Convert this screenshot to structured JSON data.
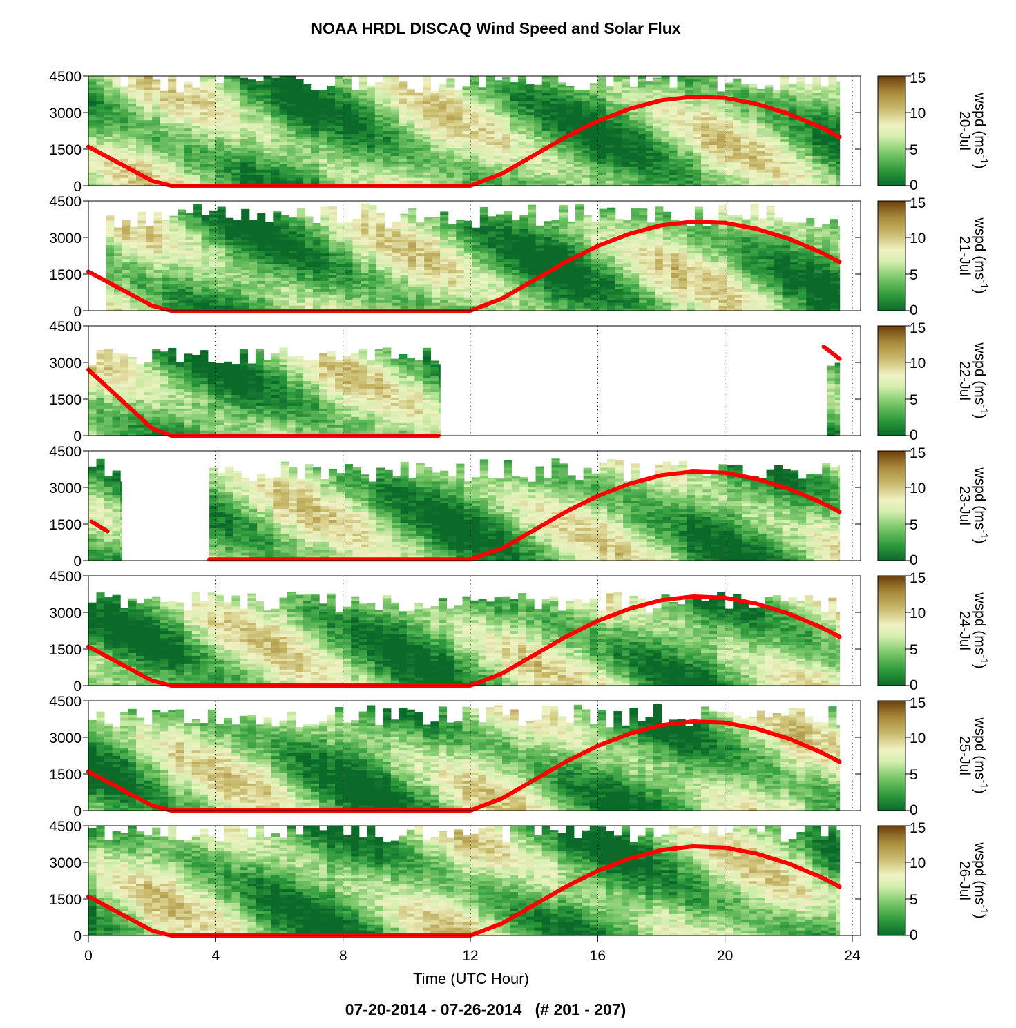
{
  "chart_data": {
    "type": "heatmap",
    "title": "NOAA HRDL DISCAQ Wind Speed and Solar Flux",
    "subtitle": "07-20-2014 - 07-26-2014   (# 201 - 207)",
    "xlabel": "Time (UTC Hour)",
    "xlim": [
      0,
      24
    ],
    "xticks": [
      "0",
      "4",
      "8",
      "12",
      "16",
      "20",
      "24"
    ],
    "ylim": [
      0,
      4500
    ],
    "yticks": [
      "0",
      "1500",
      "3000",
      "4500"
    ],
    "colorbar": {
      "label": "wspd (ms",
      "label_sup": "-1",
      "label_close": ")",
      "ticks": [
        "0",
        "5",
        "10",
        "15"
      ],
      "range": [
        0,
        15
      ],
      "colors": [
        "#0b6a2a",
        "#2e9a3c",
        "#7cc86a",
        "#d6efb0",
        "#f0f2c4",
        "#c9bb6e",
        "#a78a3a",
        "#6b3f0c"
      ]
    },
    "panels": [
      {
        "day": "20-Jul",
        "data_ranges": [
          [
            0,
            23.6
          ]
        ],
        "top": 4500,
        "solar": [
          [
            0,
            1600
          ],
          [
            2,
            200
          ],
          [
            2.6,
            0
          ],
          [
            12,
            0
          ],
          [
            13,
            500
          ],
          [
            14,
            1250
          ],
          [
            15,
            2000
          ],
          [
            16,
            2650
          ],
          [
            17,
            3150
          ],
          [
            18,
            3500
          ],
          [
            19,
            3650
          ],
          [
            20,
            3600
          ],
          [
            21,
            3350
          ],
          [
            22,
            2950
          ],
          [
            23,
            2400
          ],
          [
            23.6,
            2000
          ]
        ]
      },
      {
        "day": "21-Jul",
        "data_ranges": [
          [
            0.55,
            23.6
          ]
        ],
        "top": 4000,
        "solar": [
          [
            0,
            1600
          ],
          [
            2,
            200
          ],
          [
            2.6,
            0
          ],
          [
            12,
            0
          ],
          [
            13,
            500
          ],
          [
            14,
            1250
          ],
          [
            15,
            2000
          ],
          [
            16,
            2650
          ],
          [
            17,
            3150
          ],
          [
            18,
            3500
          ],
          [
            19,
            3650
          ],
          [
            20,
            3600
          ],
          [
            21,
            3350
          ],
          [
            22,
            2950
          ],
          [
            23,
            2400
          ],
          [
            23.6,
            2000
          ]
        ]
      },
      {
        "day": "22-Jul",
        "data_ranges": [
          [
            0,
            11.05
          ],
          [
            23.2,
            23.6
          ]
        ],
        "top": 3300,
        "solar": [
          [
            0,
            2700
          ],
          [
            2,
            300
          ],
          [
            2.6,
            0
          ],
          [
            11,
            0
          ]
        ],
        "solar2": [
          [
            23.1,
            3650
          ],
          [
            23.6,
            3150
          ]
        ]
      },
      {
        "day": "23-Jul",
        "data_ranges": [
          [
            0,
            1.05
          ],
          [
            3.8,
            23.6
          ]
        ],
        "top": 3800,
        "solar": [
          [
            0.1,
            1600
          ],
          [
            0.6,
            1200
          ]
        ],
        "solar2": [
          [
            3.8,
            50
          ],
          [
            12,
            50
          ],
          [
            13,
            500
          ],
          [
            14,
            1250
          ],
          [
            15,
            2000
          ],
          [
            16,
            2650
          ],
          [
            17,
            3150
          ],
          [
            18,
            3500
          ],
          [
            19,
            3650
          ],
          [
            20,
            3600
          ],
          [
            21,
            3350
          ],
          [
            22,
            2950
          ],
          [
            23,
            2400
          ],
          [
            23.6,
            2000
          ]
        ]
      },
      {
        "day": "24-Jul",
        "data_ranges": [
          [
            0,
            23.6
          ]
        ],
        "top": 3500,
        "solar": [
          [
            0,
            1600
          ],
          [
            2,
            200
          ],
          [
            2.6,
            0
          ],
          [
            12,
            0
          ],
          [
            13,
            500
          ],
          [
            14,
            1250
          ],
          [
            15,
            2000
          ],
          [
            16,
            2650
          ],
          [
            17,
            3150
          ],
          [
            18,
            3500
          ],
          [
            19,
            3650
          ],
          [
            20,
            3600
          ],
          [
            21,
            3350
          ],
          [
            22,
            2950
          ],
          [
            23,
            2400
          ],
          [
            23.6,
            2000
          ]
        ]
      },
      {
        "day": "25-Jul",
        "data_ranges": [
          [
            0,
            23.6
          ]
        ],
        "top": 4000,
        "solar": [
          [
            0,
            1600
          ],
          [
            2,
            200
          ],
          [
            2.6,
            0
          ],
          [
            12,
            0
          ],
          [
            13,
            500
          ],
          [
            14,
            1250
          ],
          [
            15,
            2000
          ],
          [
            16,
            2650
          ],
          [
            17,
            3150
          ],
          [
            18,
            3500
          ],
          [
            19,
            3650
          ],
          [
            20,
            3600
          ],
          [
            21,
            3350
          ],
          [
            22,
            2950
          ],
          [
            23,
            2400
          ],
          [
            23.6,
            2000
          ]
        ]
      },
      {
        "day": "26-Jul",
        "data_ranges": [
          [
            0,
            23.6
          ]
        ],
        "top": 4500,
        "solar": [
          [
            0,
            1600
          ],
          [
            2,
            200
          ],
          [
            2.6,
            0
          ],
          [
            12,
            0
          ],
          [
            13,
            500
          ],
          [
            14,
            1250
          ],
          [
            15,
            2000
          ],
          [
            16,
            2650
          ],
          [
            17,
            3150
          ],
          [
            18,
            3500
          ],
          [
            19,
            3650
          ],
          [
            20,
            3600
          ],
          [
            21,
            3350
          ],
          [
            22,
            2950
          ],
          [
            23,
            2400
          ],
          [
            23.6,
            2000
          ]
        ]
      }
    ],
    "solar_color": "#ff0000",
    "grid": "vertical dotted",
    "legend": "colorbar right of each panel"
  }
}
